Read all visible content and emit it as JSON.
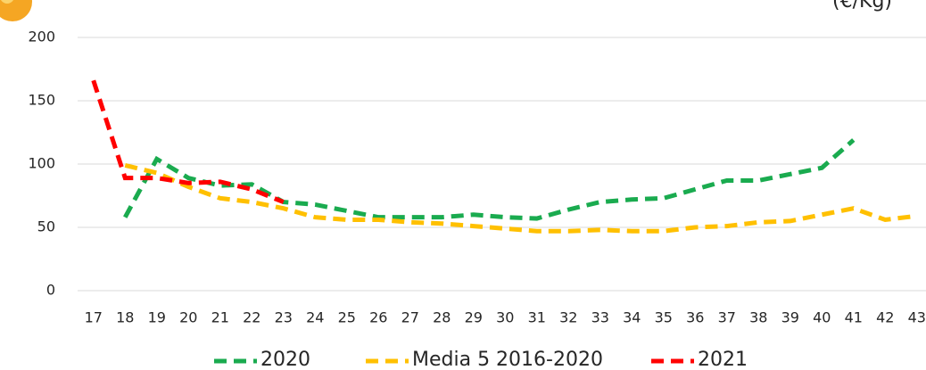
{
  "chart_data": {
    "type": "line",
    "subtitle": "(€/Kg)",
    "categories": [
      "17",
      "18",
      "19",
      "20",
      "21",
      "22",
      "23",
      "24",
      "25",
      "26",
      "27",
      "28",
      "29",
      "30",
      "31",
      "32",
      "33",
      "34",
      "35",
      "36",
      "37",
      "38",
      "39",
      "40",
      "41",
      "42",
      "43"
    ],
    "series": [
      {
        "name": "2020",
        "color": "#1aab4f",
        "values": [
          null,
          58,
          104,
          89,
          83,
          84,
          70,
          68,
          63,
          58,
          58,
          58,
          60,
          58,
          57,
          64,
          70,
          72,
          73,
          80,
          87,
          87,
          92,
          97,
          119,
          null,
          null
        ]
      },
      {
        "name": "Media 5 2016-2020",
        "color": "#ffc000",
        "values": [
          null,
          99,
          93,
          82,
          73,
          70,
          65,
          58,
          56,
          56,
          54,
          53,
          51,
          49,
          47,
          47,
          48,
          47,
          47,
          50,
          51,
          54,
          55,
          60,
          65,
          56,
          59
        ]
      },
      {
        "name": "2021",
        "color": "#ff0000",
        "values": [
          166,
          89,
          89,
          85,
          86,
          80,
          70,
          null,
          null,
          null,
          null,
          null,
          null,
          null,
          null,
          null,
          null,
          null,
          null,
          null,
          null,
          null,
          null,
          null,
          null,
          null,
          null
        ]
      }
    ],
    "ylim": [
      0,
      200
    ],
    "yticks": [
      0,
      50,
      100,
      150,
      200
    ],
    "grid": true
  }
}
